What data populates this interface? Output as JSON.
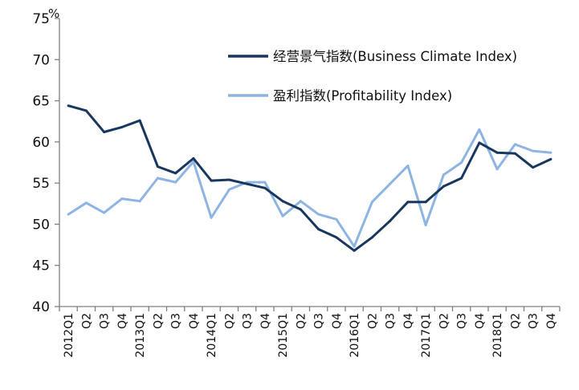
{
  "chart_data": {
    "type": "line",
    "ylabel": "%",
    "ylim": [
      40,
      75
    ],
    "yticks": [
      "40",
      "45",
      "50",
      "55",
      "60",
      "65",
      "70",
      "75"
    ],
    "grid": false,
    "legend_position": "top-right",
    "categories": [
      "2012Q1",
      "Q2",
      "Q3",
      "Q4",
      "2013Q1",
      "Q2",
      "Q3",
      "Q4",
      "2014Q1",
      "Q2",
      "Q3",
      "Q4",
      "2015Q1",
      "Q2",
      "Q3",
      "Q4",
      "2016Q1",
      "Q2",
      "Q3",
      "Q4",
      "2017Q1",
      "Q2",
      "Q3",
      "Q4",
      "2018Q1",
      "Q2",
      "Q3",
      "Q4"
    ],
    "series": [
      {
        "name": "经营景气指数(Business Climate Index)",
        "color": "#17375e",
        "values": [
          64.4,
          63.8,
          61.2,
          61.8,
          62.6,
          57.0,
          56.2,
          58.0,
          55.3,
          55.4,
          54.9,
          54.4,
          52.8,
          51.8,
          49.4,
          48.4,
          46.8,
          48.4,
          50.4,
          52.7,
          52.7,
          54.6,
          55.6,
          59.9,
          58.7,
          58.6,
          56.9,
          57.9
        ]
      },
      {
        "name": "盈利指数(Profitability Index)",
        "color": "#8db4e2",
        "values": [
          51.2,
          52.6,
          51.4,
          53.1,
          52.8,
          55.6,
          55.1,
          57.6,
          50.8,
          54.2,
          55.1,
          55.1,
          51.0,
          52.8,
          51.2,
          50.6,
          47.3,
          52.7,
          54.9,
          57.1,
          49.9,
          56.0,
          57.5,
          61.5,
          56.7,
          59.7,
          58.9,
          58.7
        ]
      }
    ]
  }
}
